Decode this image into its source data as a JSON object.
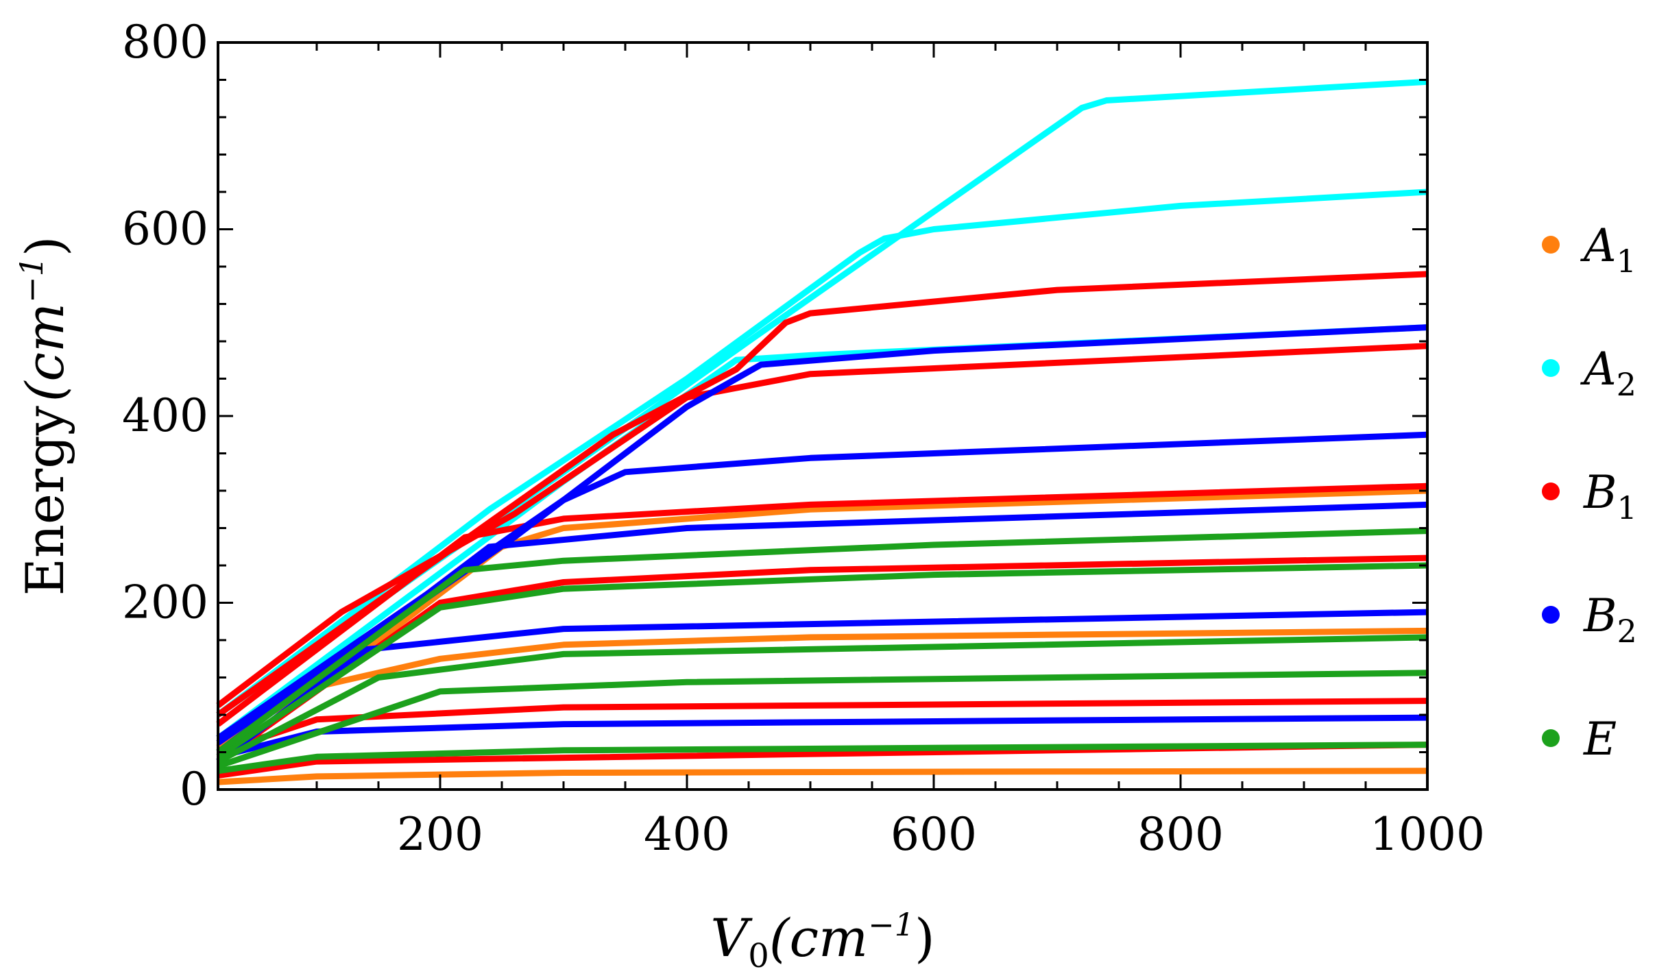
{
  "chart_data": {
    "type": "line",
    "title": "",
    "xlabel": {
      "var": "V",
      "sub": "0",
      "unit": "(cm",
      "exp": "−1",
      "close": ")"
    },
    "ylabel": {
      "word": "Energy",
      "unit": "(cm",
      "exp": "−1",
      "close": ")"
    },
    "xlim": [
      20,
      1000
    ],
    "ylim": [
      0,
      800
    ],
    "x_ticks": [
      200,
      400,
      600,
      800,
      1000
    ],
    "y_ticks": [
      0,
      200,
      400,
      600,
      800
    ],
    "x_ticks_label": [
      "200",
      "400",
      "600",
      "800",
      "1000"
    ],
    "y_ticks_label": [
      "0",
      "200",
      "400",
      "600",
      "800"
    ],
    "legend": [
      {
        "name": "A",
        "sub": "1",
        "color": "#ff7f0e"
      },
      {
        "name": "A",
        "sub": "2",
        "color": "#00ffff"
      },
      {
        "name": "B",
        "sub": "1",
        "color": "#ff0000"
      },
      {
        "name": "B",
        "sub": "2",
        "color": "#0000ff"
      },
      {
        "name": "E",
        "sub": "",
        "color": "#1ca11c"
      }
    ],
    "series": [
      {
        "name": "A1",
        "color": "#ff7f0e",
        "points": [
          [
            20,
            8
          ],
          [
            100,
            14
          ],
          [
            300,
            18
          ],
          [
            600,
            19
          ],
          [
            1000,
            20
          ]
        ]
      },
      {
        "name": "A1",
        "color": "#ff7f0e",
        "points": [
          [
            20,
            50
          ],
          [
            100,
            110
          ],
          [
            200,
            140
          ],
          [
            300,
            155
          ],
          [
            500,
            163
          ],
          [
            1000,
            170
          ]
        ]
      },
      {
        "name": "A1",
        "color": "#ff7f0e",
        "points": [
          [
            20,
            45
          ],
          [
            150,
            160
          ],
          [
            250,
            260
          ],
          [
            300,
            280
          ],
          [
            500,
            300
          ],
          [
            1000,
            320
          ]
        ]
      },
      {
        "name": "A2",
        "color": "#00ffff",
        "points": [
          [
            20,
            80
          ],
          [
            240,
            300
          ],
          [
            400,
            440
          ],
          [
            540,
            575
          ],
          [
            560,
            590
          ],
          [
            600,
            600
          ],
          [
            800,
            625
          ],
          [
            1000,
            640
          ]
        ]
      },
      {
        "name": "A2",
        "color": "#00ffff",
        "points": [
          [
            20,
            80
          ],
          [
            300,
            340
          ],
          [
            450,
            480
          ],
          [
            720,
            730
          ],
          [
            740,
            738
          ],
          [
            1000,
            758
          ]
        ]
      },
      {
        "name": "A2",
        "color": "#00ffff",
        "points": [
          [
            20,
            55
          ],
          [
            300,
            330
          ],
          [
            440,
            460
          ],
          [
            500,
            465
          ],
          [
            1000,
            495
          ]
        ]
      },
      {
        "name": "B1",
        "color": "#ff0000",
        "points": [
          [
            20,
            15
          ],
          [
            100,
            30
          ],
          [
            1000,
            48
          ]
        ]
      },
      {
        "name": "B1",
        "color": "#ff0000",
        "points": [
          [
            20,
            40
          ],
          [
            100,
            75
          ],
          [
            300,
            88
          ],
          [
            1000,
            95
          ]
        ]
      },
      {
        "name": "B1",
        "color": "#ff0000",
        "points": [
          [
            20,
            30
          ],
          [
            200,
            200
          ],
          [
            300,
            222
          ],
          [
            500,
            235
          ],
          [
            1000,
            248
          ]
        ]
      },
      {
        "name": "B1",
        "color": "#ff0000",
        "points": [
          [
            20,
            70
          ],
          [
            220,
            270
          ],
          [
            300,
            290
          ],
          [
            500,
            305
          ],
          [
            1000,
            325
          ]
        ]
      },
      {
        "name": "B1",
        "color": "#ff0000",
        "points": [
          [
            20,
            90
          ],
          [
            120,
            190
          ],
          [
            260,
            295
          ],
          [
            400,
            420
          ],
          [
            440,
            430
          ],
          [
            500,
            445
          ],
          [
            1000,
            475
          ]
        ]
      },
      {
        "name": "B1",
        "color": "#ff0000",
        "points": [
          [
            20,
            80
          ],
          [
            340,
            380
          ],
          [
            440,
            450
          ],
          [
            480,
            500
          ],
          [
            500,
            510
          ],
          [
            700,
            535
          ],
          [
            1000,
            552
          ]
        ]
      },
      {
        "name": "B2",
        "color": "#0000ff",
        "points": [
          [
            20,
            35
          ],
          [
            100,
            62
          ],
          [
            300,
            70
          ],
          [
            1000,
            77
          ]
        ]
      },
      {
        "name": "B2",
        "color": "#0000ff",
        "points": [
          [
            20,
            30
          ],
          [
            140,
            150
          ],
          [
            300,
            172
          ],
          [
            1000,
            190
          ]
        ]
      },
      {
        "name": "B2",
        "color": "#0000ff",
        "points": [
          [
            20,
            40
          ],
          [
            240,
            260
          ],
          [
            400,
            280
          ],
          [
            1000,
            305
          ]
        ]
      },
      {
        "name": "B2",
        "color": "#0000ff",
        "points": [
          [
            20,
            55
          ],
          [
            300,
            310
          ],
          [
            350,
            340
          ],
          [
            500,
            355
          ],
          [
            1000,
            380
          ]
        ]
      },
      {
        "name": "B2",
        "color": "#0000ff",
        "points": [
          [
            20,
            50
          ],
          [
            260,
            270
          ],
          [
            400,
            410
          ],
          [
            460,
            455
          ],
          [
            600,
            470
          ],
          [
            1000,
            495
          ]
        ]
      },
      {
        "name": "E",
        "color": "#1ca11c",
        "points": [
          [
            20,
            20
          ],
          [
            100,
            35
          ],
          [
            300,
            42
          ],
          [
            1000,
            48
          ]
        ]
      },
      {
        "name": "E",
        "color": "#1ca11c",
        "points": [
          [
            20,
            25
          ],
          [
            200,
            105
          ],
          [
            400,
            115
          ],
          [
            1000,
            125
          ]
        ]
      },
      {
        "name": "E",
        "color": "#1ca11c",
        "points": [
          [
            20,
            30
          ],
          [
            150,
            120
          ],
          [
            300,
            145
          ],
          [
            1000,
            163
          ]
        ]
      },
      {
        "name": "E",
        "color": "#1ca11c",
        "points": [
          [
            20,
            35
          ],
          [
            200,
            195
          ],
          [
            300,
            215
          ],
          [
            600,
            230
          ],
          [
            1000,
            240
          ]
        ]
      },
      {
        "name": "E",
        "color": "#1ca11c",
        "points": [
          [
            20,
            40
          ],
          [
            220,
            235
          ],
          [
            300,
            245
          ],
          [
            600,
            262
          ],
          [
            1000,
            277
          ]
        ]
      }
    ]
  }
}
